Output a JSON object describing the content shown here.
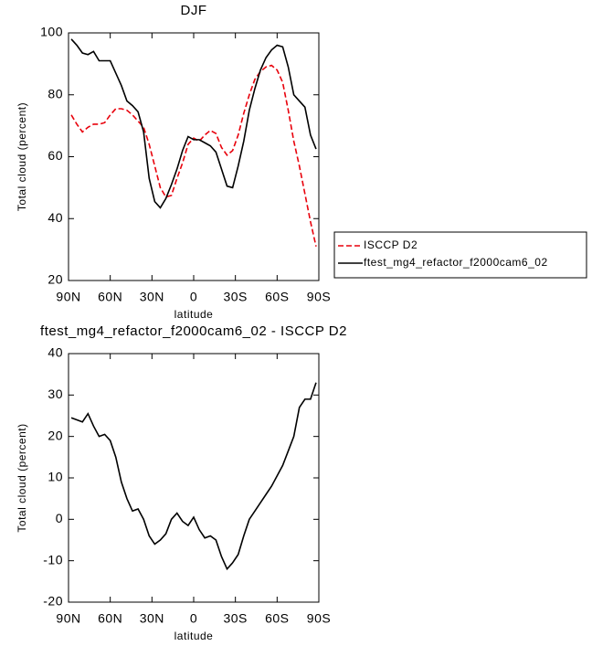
{
  "chart_data": [
    {
      "type": "line",
      "title": "DJF",
      "ylabel": "Total cloud (percent)",
      "xlabel": "latitude",
      "xlim": [
        90,
        -90
      ],
      "ylim": [
        20,
        100
      ],
      "xticks": [
        {
          "value": 90,
          "label": "90N"
        },
        {
          "value": 60,
          "label": "60N"
        },
        {
          "value": 30,
          "label": "30N"
        },
        0,
        {
          "value": -30,
          "label": "30S"
        },
        {
          "value": -60,
          "label": "60S"
        },
        {
          "value": -90,
          "label": "90S"
        }
      ],
      "yticks": [
        20,
        40,
        60,
        80,
        100
      ],
      "legend": "outside-right",
      "x": [
        88,
        84,
        80,
        76,
        72,
        68,
        64,
        60,
        56,
        52,
        48,
        44,
        40,
        36,
        32,
        28,
        24,
        20,
        16,
        12,
        8,
        4,
        0,
        -4,
        -8,
        -12,
        -16,
        -20,
        -24,
        -28,
        -32,
        -36,
        -40,
        -44,
        -48,
        -52,
        -56,
        -60,
        -64,
        -68,
        -72,
        -76,
        -80,
        -84,
        -88
      ],
      "series": [
        {
          "name": "ISCCP D2",
          "color": "#e8000b",
          "dash": true,
          "values": [
            73.5,
            70.5,
            68,
            69.5,
            70.5,
            70.5,
            71,
            73.5,
            75.5,
            75.5,
            75,
            73.5,
            71.5,
            69.5,
            64,
            57,
            50,
            47,
            47.5,
            53,
            58,
            64,
            66,
            65,
            67,
            68.5,
            67.5,
            63,
            60.5,
            62,
            67,
            74,
            80,
            85,
            87.5,
            89,
            89.5,
            88,
            84,
            75,
            65,
            57,
            48,
            39,
            31
          ]
        },
        {
          "name": "ftest_mg4_refactor_f2000cam6_02",
          "color": "#000000",
          "dash": false,
          "values": [
            98,
            96,
            93.5,
            93,
            94,
            91,
            91,
            91,
            87,
            83,
            78,
            76.5,
            74.5,
            68,
            53,
            45.5,
            43.5,
            46.5,
            51,
            56,
            62,
            66.5,
            65.5,
            65.5,
            64.5,
            63.5,
            61.5,
            56,
            50.5,
            50,
            57,
            65,
            75,
            82,
            88,
            92,
            94.5,
            96,
            95.5,
            89,
            80,
            78,
            76,
            67,
            62.5
          ]
        }
      ]
    },
    {
      "type": "line",
      "title": "ftest_mg4_refactor_f2000cam6_02 - ISCCP D2",
      "ylabel": "Total cloud (percent)",
      "xlabel": "latitude",
      "xlim": [
        90,
        -90
      ],
      "ylim": [
        -20,
        40
      ],
      "xticks": [
        {
          "value": 90,
          "label": "90N"
        },
        {
          "value": 60,
          "label": "60N"
        },
        {
          "value": 30,
          "label": "30N"
        },
        0,
        {
          "value": -30,
          "label": "30S"
        },
        {
          "value": -60,
          "label": "60S"
        },
        {
          "value": -90,
          "label": "90S"
        }
      ],
      "yticks": [
        -20,
        -10,
        0,
        10,
        20,
        30,
        40
      ],
      "x": [
        88,
        84,
        80,
        76,
        72,
        68,
        64,
        60,
        56,
        52,
        48,
        44,
        40,
        36,
        32,
        28,
        24,
        20,
        16,
        12,
        8,
        4,
        0,
        -4,
        -8,
        -12,
        -16,
        -20,
        -24,
        -28,
        -32,
        -36,
        -40,
        -44,
        -48,
        -52,
        -56,
        -60,
        -64,
        -68,
        -72,
        -76,
        -80,
        -84,
        -88
      ],
      "series": [
        {
          "color": "#000000",
          "dash": false,
          "values": [
            24.5,
            24,
            23.5,
            25.5,
            22.5,
            20,
            20.5,
            19,
            15,
            9,
            5,
            2,
            2.5,
            0,
            -4,
            -6,
            -5,
            -3.5,
            0,
            1.5,
            -0.5,
            -1.5,
            0.5,
            -2.5,
            -4.5,
            -4,
            -5,
            -9,
            -12,
            -10.5,
            -8.5,
            -4,
            0,
            2,
            4,
            6,
            8,
            10.5,
            13,
            16.5,
            20,
            27,
            29,
            29,
            33
          ]
        }
      ]
    }
  ]
}
